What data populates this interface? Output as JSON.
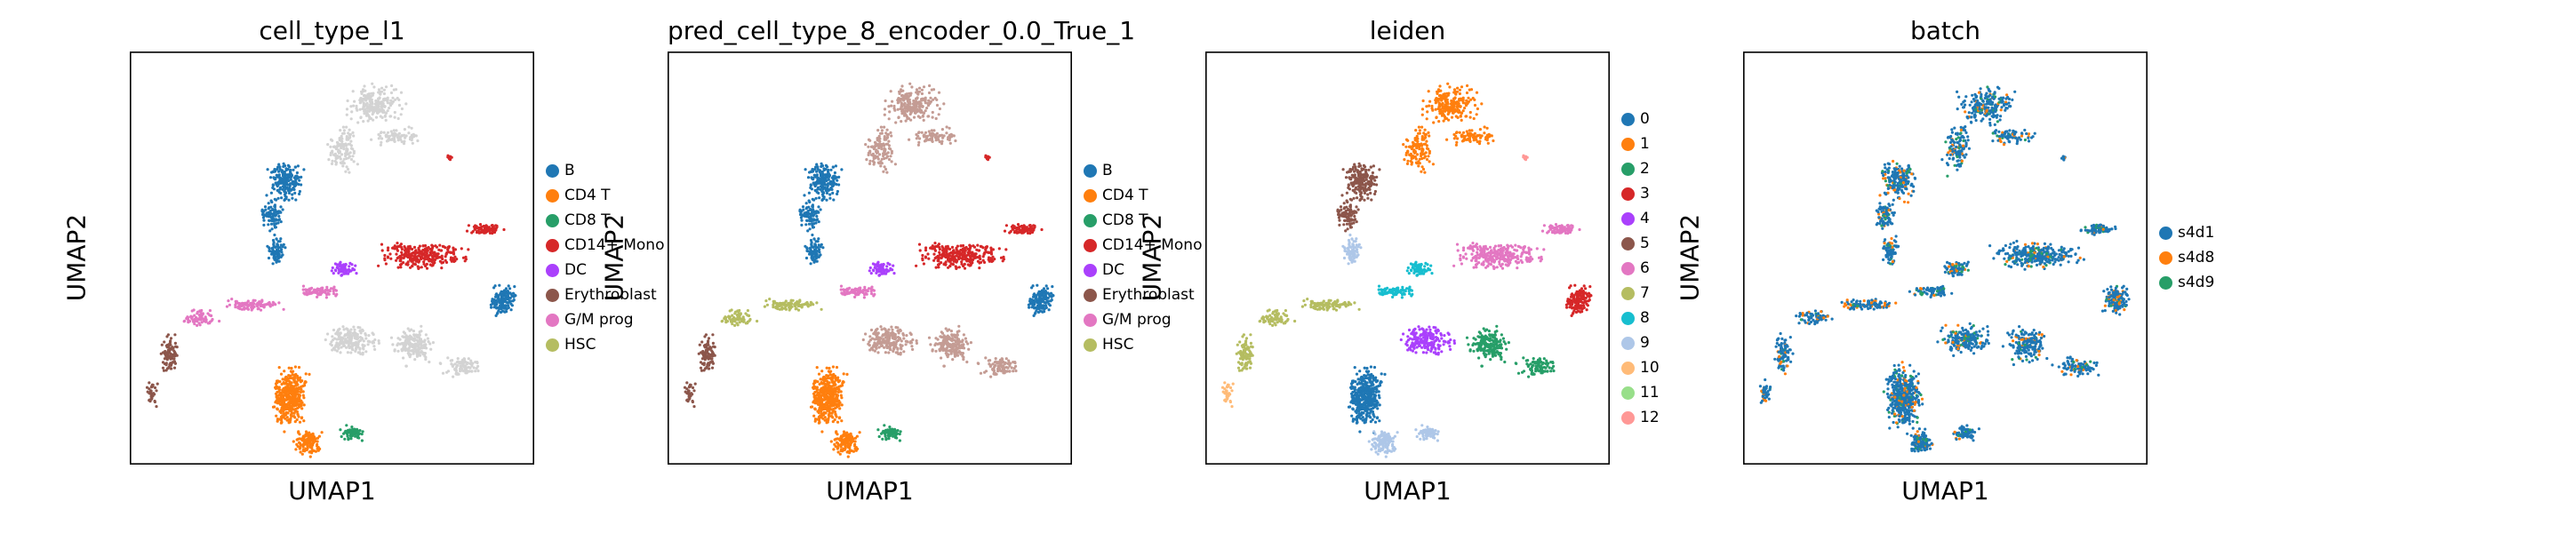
{
  "chart_data": [
    {
      "type": "scatter",
      "title": "cell_type_l1",
      "xlabel": "UMAP1",
      "ylabel": "UMAP2",
      "categories": [
        {
          "name": "B",
          "color": "#1f77b4"
        },
        {
          "name": "CD4 T",
          "color": "#ff7f0e"
        },
        {
          "name": "CD8 T",
          "color": "#279e68"
        },
        {
          "name": "CD14+ Mono",
          "color": "#d62728"
        },
        {
          "name": "DC",
          "color": "#aa40fc"
        },
        {
          "name": "Erythroblast",
          "color": "#8c564b"
        },
        {
          "name": "G/M prog",
          "color": "#e377c2"
        },
        {
          "name": "HSC",
          "color": "#b5bd61"
        }
      ],
      "unlabeled_color": "#d3d3d3"
    },
    {
      "type": "scatter",
      "title": "pred_cell_type_8_encoder_0.0_True_1",
      "xlabel": "UMAP1",
      "ylabel": "UMAP2",
      "categories": [
        {
          "name": "B",
          "color": "#1f77b4"
        },
        {
          "name": "CD4 T",
          "color": "#ff7f0e"
        },
        {
          "name": "CD8 T",
          "color": "#279e68"
        },
        {
          "name": "CD14+ Mono",
          "color": "#d62728"
        },
        {
          "name": "DC",
          "color": "#aa40fc"
        },
        {
          "name": "Erythroblast",
          "color": "#8c564b"
        },
        {
          "name": "G/M prog",
          "color": "#e377c2"
        },
        {
          "name": "HSC",
          "color": "#b5bd61"
        }
      ],
      "unlabeled_color": "#c49c94"
    },
    {
      "type": "scatter",
      "title": "leiden",
      "xlabel": "UMAP1",
      "ylabel": "UMAP2",
      "categories": [
        {
          "name": "0",
          "color": "#1f77b4"
        },
        {
          "name": "1",
          "color": "#ff7f0e"
        },
        {
          "name": "2",
          "color": "#279e68"
        },
        {
          "name": "3",
          "color": "#d62728"
        },
        {
          "name": "4",
          "color": "#aa40fc"
        },
        {
          "name": "5",
          "color": "#8c564b"
        },
        {
          "name": "6",
          "color": "#e377c2"
        },
        {
          "name": "7",
          "color": "#b5bd61"
        },
        {
          "name": "8",
          "color": "#17becf"
        },
        {
          "name": "9",
          "color": "#aec7e8"
        },
        {
          "name": "10",
          "color": "#ffbb78"
        },
        {
          "name": "11",
          "color": "#98df8a"
        },
        {
          "name": "12",
          "color": "#ff9896"
        }
      ]
    },
    {
      "type": "scatter",
      "title": "batch",
      "xlabel": "UMAP1",
      "ylabel": "UMAP2",
      "categories": [
        {
          "name": "s4d1",
          "color": "#1f77b4"
        },
        {
          "name": "s4d8",
          "color": "#ff7f0e"
        },
        {
          "name": "s4d9",
          "color": "#279e68"
        }
      ]
    }
  ]
}
